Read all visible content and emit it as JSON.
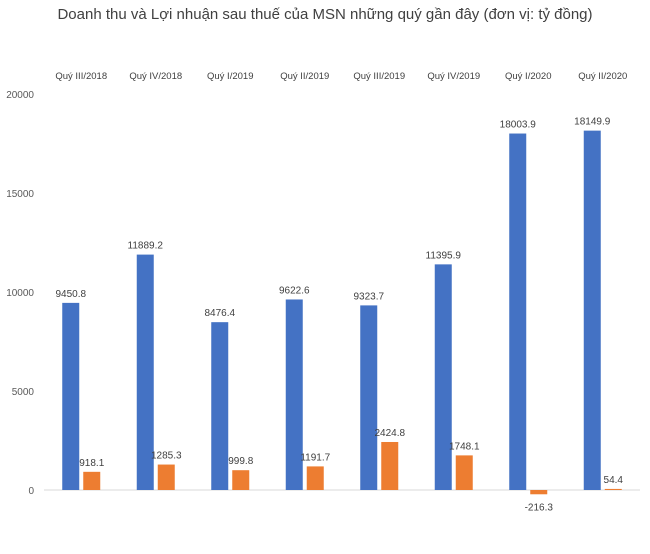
{
  "chart_data": {
    "type": "bar",
    "title": "Doanh thu và Lợi nhuận sau thuế của MSN những quý gần đây (đơn vị: tỷ đồng)",
    "categories": [
      "Quý III/2018",
      "Quý IV/2018",
      "Quý I/2019",
      "Quý II/2019",
      "Quý III/2019",
      "Quý IV/2019",
      "Quý I/2020",
      "Quý II/2020"
    ],
    "series": [
      {
        "values": [
          9450.8,
          11889.2,
          8476.4,
          9622.6,
          9323.7,
          11395.9,
          18003.9,
          18149.9
        ],
        "color": "#4472C4"
      },
      {
        "values": [
          918.1,
          1285.3,
          999.8,
          1191.7,
          2424.8,
          1748.1,
          -216.3,
          54.4
        ],
        "color": "#ED7D31"
      }
    ],
    "data_labels": [
      [
        "9450.8",
        "11889.2",
        "8476.4",
        "9622.6",
        "9323.7",
        "11395.9",
        "18003.9",
        "18149.9"
      ],
      [
        "918.1",
        "1285.3",
        "999.8",
        "1191.7",
        "2424.8",
        "1748.1",
        "-216.3",
        "54.4"
      ]
    ],
    "yticks": [
      "20000",
      "15000",
      "10000",
      "5000",
      "0"
    ],
    "ylim": [
      -1000,
      20000
    ],
    "category_labels_position": "top",
    "grid": false,
    "legend": "none",
    "xlabel": "",
    "ylabel": ""
  }
}
